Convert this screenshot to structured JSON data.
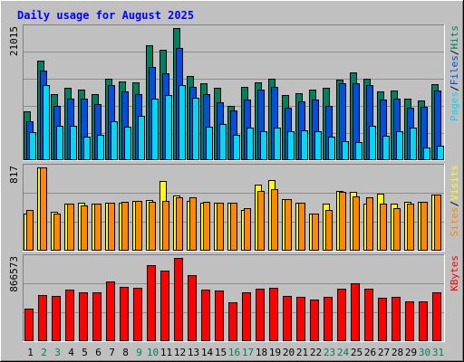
{
  "chart_data": {
    "type": "bar",
    "title": "Daily usage for August 2025",
    "days": [
      "1",
      "2",
      "3",
      "4",
      "5",
      "6",
      "7",
      "8",
      "9",
      "10",
      "11",
      "12",
      "13",
      "14",
      "15",
      "16",
      "17",
      "18",
      "19",
      "20",
      "21",
      "22",
      "23",
      "24",
      "25",
      "26",
      "27",
      "28",
      "29",
      "30",
      "31"
    ],
    "weekend_days": [
      "2",
      "3",
      "9",
      "10",
      "16",
      "17",
      "23",
      "24",
      "30",
      "31"
    ],
    "colors": {
      "background": "#c0c0c0",
      "title": "#0000ff",
      "hits": "#00805c",
      "files": "#0050e0",
      "pages": "#00d8f8",
      "visits": "#ffff00",
      "sites": "#ff8800",
      "kbytes": "#ff0000",
      "weekday_label": "#000000",
      "weekend_label": "#00805c"
    },
    "panels": [
      {
        "id": "hits-files-pages",
        "ymax_label": "21015",
        "ymax": 21015,
        "legend": [
          {
            "label": "Hits",
            "color": "#00805c"
          },
          {
            "label": "/",
            "color": "#000000"
          },
          {
            "label": "Files",
            "color": "#0050e0"
          },
          {
            "label": "/",
            "color": "#000000"
          },
          {
            "label": "Pages",
            "color": "#00d8f8"
          }
        ],
        "series": [
          {
            "name": "Hits",
            "color": "#00805c",
            "values": [
              7800,
              15800,
              10500,
              11500,
              11200,
              10500,
              13000,
              12500,
              12400,
              18300,
              17500,
              21015,
              13400,
              12200,
              11500,
              8700,
              11600,
              12400,
              13000,
              10300,
              10600,
              11200,
              11500,
              12800,
              14000,
              13000,
              11000,
              11100,
              9800,
              9500,
              12100
            ]
          },
          {
            "name": "Files",
            "color": "#0050e0",
            "values": [
              6200,
              14200,
              8600,
              9800,
              9800,
              8900,
              12000,
              11000,
              10500,
              14800,
              13800,
              17800,
              11600,
              10500,
              9200,
              7900,
              9600,
              11200,
              11700,
              8400,
              9400,
              9700,
              8600,
              12200,
              12300,
              11900,
              9700,
              9800,
              8400,
              8500,
              11100
            ]
          },
          {
            "name": "Pages",
            "color": "#00d8f8",
            "values": [
              4500,
              12000,
              5500,
              5500,
              3800,
              4000,
              6200,
              5300,
              7100,
              9800,
              10300,
              12000,
              10000,
              5300,
              5700,
              4000,
              5200,
              4600,
              5200,
              4600,
              4700,
              4600,
              3800,
              3000,
              2900,
              5500,
              3900,
              4600,
              5200,
              2000,
              2300
            ]
          }
        ]
      },
      {
        "id": "visits-sites",
        "ymax_label": "817",
        "ymax": 817,
        "legend": [
          {
            "label": "Visits",
            "color": "#ffff00"
          },
          {
            "label": "/",
            "color": "#000000"
          },
          {
            "label": "Sites",
            "color": "#ff8800"
          }
        ],
        "series": [
          {
            "name": "Visits",
            "color": "#ffff00",
            "values": [
              360,
              817,
              380,
              460,
              470,
              460,
              470,
              470,
              490,
              500,
              680,
              540,
              490,
              470,
              470,
              470,
              400,
              650,
              690,
              510,
              470,
              360,
              460,
              590,
              580,
              460,
              560,
              460,
              480,
              480,
              550
            ]
          },
          {
            "name": "Sites",
            "color": "#ff8800",
            "values": [
              400,
              817,
              360,
              460,
              440,
              460,
              470,
              480,
              490,
              480,
              490,
              520,
              520,
              480,
              470,
              470,
              420,
              590,
              600,
              510,
              470,
              360,
              400,
              580,
              530,
              520,
              460,
              420,
              460,
              480,
              550
            ]
          }
        ]
      },
      {
        "id": "kbytes",
        "ymax_label": "866573",
        "ymax": 866573,
        "legend": [
          {
            "label": "KBytes",
            "color": "#ff0000"
          }
        ],
        "series": [
          {
            "name": "KBytes",
            "color": "#ff0000",
            "values": [
              340000,
              485000,
              475000,
              535000,
              510000,
              505000,
              625000,
              565000,
              555000,
              790000,
              735000,
              866573,
              690000,
              535000,
              525000,
              405000,
              510000,
              545000,
              560000,
              470000,
              465000,
              435000,
              460000,
              545000,
              605000,
              545000,
              450000,
              460000,
              415000,
              415000,
              510000
            ]
          }
        ]
      }
    ]
  }
}
